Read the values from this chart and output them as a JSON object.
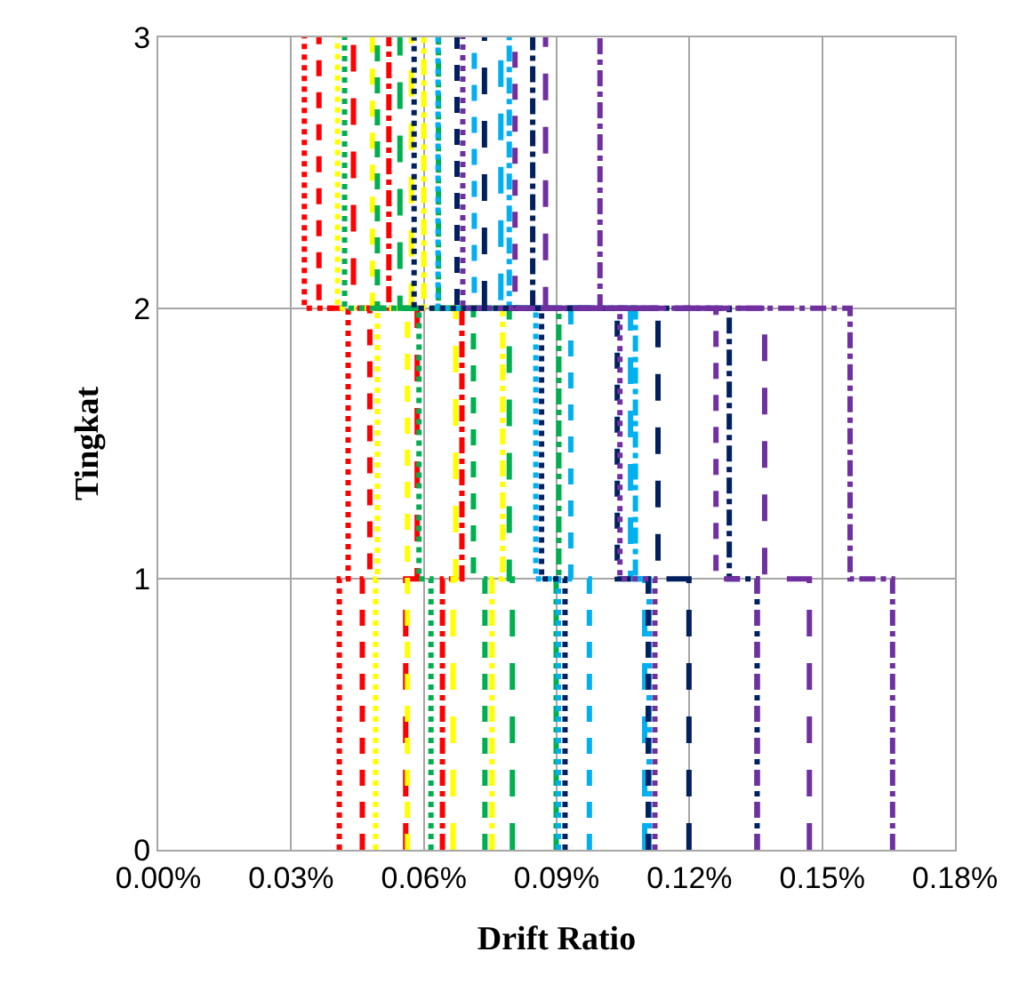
{
  "chart_data": {
    "type": "step",
    "orientation": "horizontal",
    "xlabel": "Drift Ratio",
    "ylabel": "Tingkat",
    "x": [
      0,
      1,
      2,
      3
    ],
    "xlim": [
      0,
      0.18
    ],
    "xticks": [
      {
        "value": 0,
        "label": "0.00%"
      },
      {
        "value": 0.03,
        "label": "0.03%"
      },
      {
        "value": 0.06,
        "label": "0.06%"
      },
      {
        "value": 0.09,
        "label": "0.09%"
      },
      {
        "value": 0.12,
        "label": "0.12%"
      },
      {
        "value": 0.15,
        "label": "0.15%"
      },
      {
        "value": 0.18,
        "label": "0.18%"
      }
    ],
    "ylim": [
      0,
      3
    ],
    "yticks": [
      0,
      1,
      2,
      3
    ],
    "grid": true,
    "marker": "none",
    "series": [
      {
        "color": "#ff0000",
        "line_style": "dotted",
        "values": [
          0.0409,
          0.0429,
          0.033,
          0.033
        ]
      },
      {
        "color": "#ff0000",
        "line_style": "dashed",
        "values": [
          0.0461,
          0.0478,
          0.0363,
          0.0363
        ]
      },
      {
        "color": "#ff0000",
        "line_style": "longdash",
        "values": [
          0.0559,
          0.0585,
          0.0441,
          0.0441
        ]
      },
      {
        "color": "#ff0000",
        "line_style": "dashdot",
        "values": [
          0.0642,
          0.0686,
          0.0521,
          0.0521
        ]
      },
      {
        "color": "#ffff00",
        "line_style": "dotted",
        "values": [
          0.0491,
          0.0495,
          0.0405,
          0.0405
        ]
      },
      {
        "color": "#ffff00",
        "line_style": "dashed",
        "values": [
          0.0563,
          0.0563,
          0.0484,
          0.0484
        ]
      },
      {
        "color": "#ffff00",
        "line_style": "longdash",
        "values": [
          0.0666,
          0.0672,
          0.0572,
          0.0572
        ]
      },
      {
        "color": "#ffff00",
        "line_style": "dashdot",
        "values": [
          0.0754,
          0.0778,
          0.06,
          0.06
        ]
      },
      {
        "color": "#00b050",
        "line_style": "dotted",
        "values": [
          0.0616,
          0.0589,
          0.0421,
          0.0421
        ]
      },
      {
        "color": "#00b050",
        "line_style": "dashed",
        "values": [
          0.0738,
          0.0712,
          0.0495,
          0.0495
        ]
      },
      {
        "color": "#00b050",
        "line_style": "longdash",
        "values": [
          0.08,
          0.0793,
          0.0546,
          0.0546
        ]
      },
      {
        "color": "#00b050",
        "line_style": "dashdot",
        "values": [
          0.0899,
          0.0905,
          0.0633,
          0.0633
        ]
      },
      {
        "color": "#00b0f0",
        "line_style": "dotted",
        "values": [
          0.0904,
          0.0853,
          0.0632,
          0.0632
        ]
      },
      {
        "color": "#00b0f0",
        "line_style": "dashed",
        "values": [
          0.0974,
          0.0932,
          0.0714,
          0.0714
        ]
      },
      {
        "color": "#00b0f0",
        "line_style": "longdash",
        "values": [
          0.1099,
          0.1067,
          0.0774,
          0.0774
        ]
      },
      {
        "color": "#00b0f0",
        "line_style": "dashdot",
        "values": [
          0.1109,
          0.1078,
          0.0793,
          0.0793
        ]
      },
      {
        "color": "#002060",
        "line_style": "dotted",
        "values": [
          0.0919,
          0.0866,
          0.0578,
          0.0578
        ]
      },
      {
        "color": "#002060",
        "line_style": "dashed",
        "values": [
          0.1107,
          0.1037,
          0.0675,
          0.0675
        ]
      },
      {
        "color": "#002060",
        "line_style": "longdash",
        "values": [
          0.1199,
          0.1129,
          0.0737,
          0.0737
        ]
      },
      {
        "color": "#002060",
        "line_style": "dashdot",
        "values": [
          0.1353,
          0.129,
          0.0846,
          0.0846
        ]
      },
      {
        "color": "#7030a0",
        "line_style": "dotted",
        "values": [
          0.1122,
          0.1043,
          0.0688,
          0.0688
        ]
      },
      {
        "color": "#7030a0",
        "line_style": "dashed",
        "values": [
          0.1353,
          0.126,
          0.0806,
          0.0806
        ]
      },
      {
        "color": "#7030a0",
        "line_style": "longdash",
        "values": [
          0.1471,
          0.137,
          0.0875,
          0.0875
        ]
      },
      {
        "color": "#7030a0",
        "line_style": "dashdot",
        "values": [
          0.1659,
          0.1563,
          0.0998,
          0.0998
        ]
      }
    ]
  }
}
